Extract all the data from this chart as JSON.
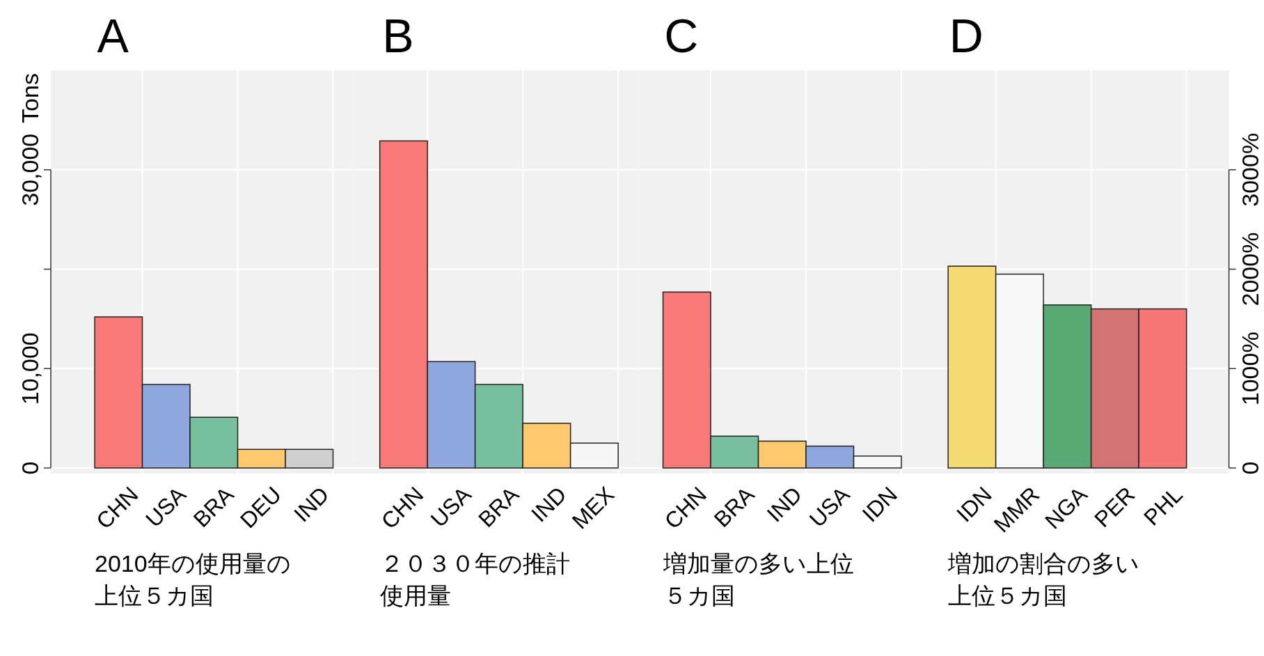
{
  "chart_data": [
    {
      "type": "bar",
      "title": "A",
      "ylabel": "Tons",
      "categories": [
        "CHN",
        "USA",
        "BRA",
        "DEU",
        "IND"
      ],
      "values": [
        15200,
        8400,
        5100,
        1870,
        1870
      ],
      "colors": [
        "#f77a78",
        "#8ea8de",
        "#78bfa0",
        "#fec96f",
        "#cfcfcf"
      ],
      "ylim": [
        0,
        40000
      ],
      "yticks": [
        0,
        {
          "value": 10000,
          "label": "10,000"
        },
        {
          "value": 20000,
          "label": null
        },
        {
          "value": 30000,
          "label": "30,000"
        }
      ],
      "grid": true,
      "annotations": [
        "2010年の使用量の上位５カ国"
      ]
    },
    {
      "type": "bar",
      "title": "B",
      "categories": [
        "CHN",
        "USA",
        "BRA",
        "IND",
        "MEX"
      ],
      "values": [
        32900,
        10700,
        8400,
        4500,
        2500
      ],
      "colors": [
        "#f77a78",
        "#8ea8de",
        "#78bfa0",
        "#fec96f",
        "#f7f7f7"
      ],
      "ylim": [
        0,
        40000
      ],
      "yticks": [
        {
          "value": 0,
          "label": null
        },
        {
          "value": 10000,
          "label": null
        },
        {
          "value": 20000,
          "label": null
        },
        {
          "value": 30000,
          "label": null
        }
      ],
      "tick_labels": "x",
      "grid": true,
      "annotations": [
        "２０３０年の推計使用量"
      ]
    },
    {
      "type": "bar",
      "title": "C",
      "categories": [
        "CHN",
        "BRA",
        "IND",
        "USA",
        "IDN"
      ],
      "values": [
        17700,
        3200,
        2700,
        2200,
        1200
      ],
      "colors": [
        "#f77a78",
        "#78bfa0",
        "#fec96f",
        "#8ea8de",
        "#f7f7f7"
      ],
      "ylim": [
        0,
        40000
      ],
      "yticks": [
        {
          "value": 0,
          "label": null
        },
        {
          "value": 10000,
          "label": null
        },
        {
          "value": 20000,
          "label": null
        },
        {
          "value": 30000,
          "label": null
        }
      ],
      "tick_labels": "x",
      "grid": true,
      "annotations": [
        "増加量の多い上位５カ国"
      ]
    },
    {
      "type": "bar",
      "title": "D",
      "categories": [
        "IDN",
        "MMR",
        "NGA",
        "PER",
        "PHL"
      ],
      "series": [
        {
          "axis": "y2",
          "values": [
            2030,
            1950,
            1640,
            1600,
            1600
          ],
          "colors": [
            "#f3db72",
            "#f8f8f8",
            "#5aa874",
            "#d47374",
            "#f77776"
          ]
        }
      ],
      "y2lim": [
        0,
        4000
      ],
      "y2ticks": [
        0,
        {
          "value": 1000,
          "label": "1000%"
        },
        {
          "value": 2000,
          "label": "2000%"
        },
        {
          "value": 3000,
          "label": "3000%"
        }
      ],
      "grid": true,
      "annotations": [
        "増加の割合の多い上位５カ国"
      ]
    }
  ]
}
